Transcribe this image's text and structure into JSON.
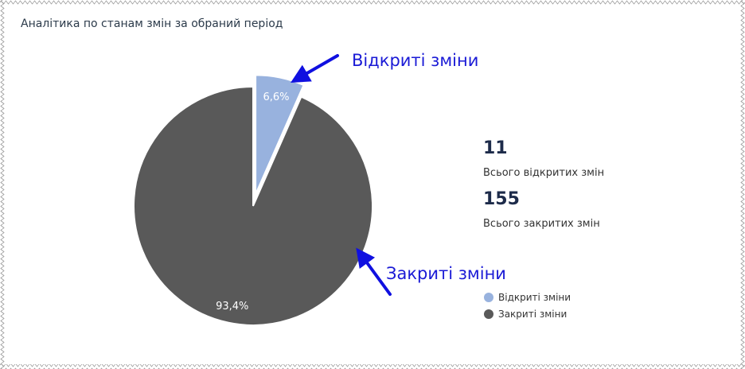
{
  "title": "Аналітика по станам змін за обраний період",
  "chart_data": {
    "type": "pie",
    "categories": [
      "Відкриті зміни",
      "Закриті зміни"
    ],
    "values": [
      6.6,
      93.4
    ],
    "data_labels": [
      "6,6%",
      "93,4%"
    ],
    "colors": [
      "#98b2de",
      "#595959"
    ],
    "exploded": [
      true,
      false
    ],
    "legend": [
      "Відкриті зміни",
      "Закриті зміни"
    ],
    "legend_placement": "bottom-right"
  },
  "stats": {
    "open_count": "11",
    "open_label": "Всього відкритих змін",
    "closed_count": "155",
    "closed_label": "Всього закритих змін"
  },
  "annotations": {
    "open_callout": "Відкриті зміни",
    "closed_callout": "Закриті зміни",
    "arrow_color": "#1010e0"
  }
}
